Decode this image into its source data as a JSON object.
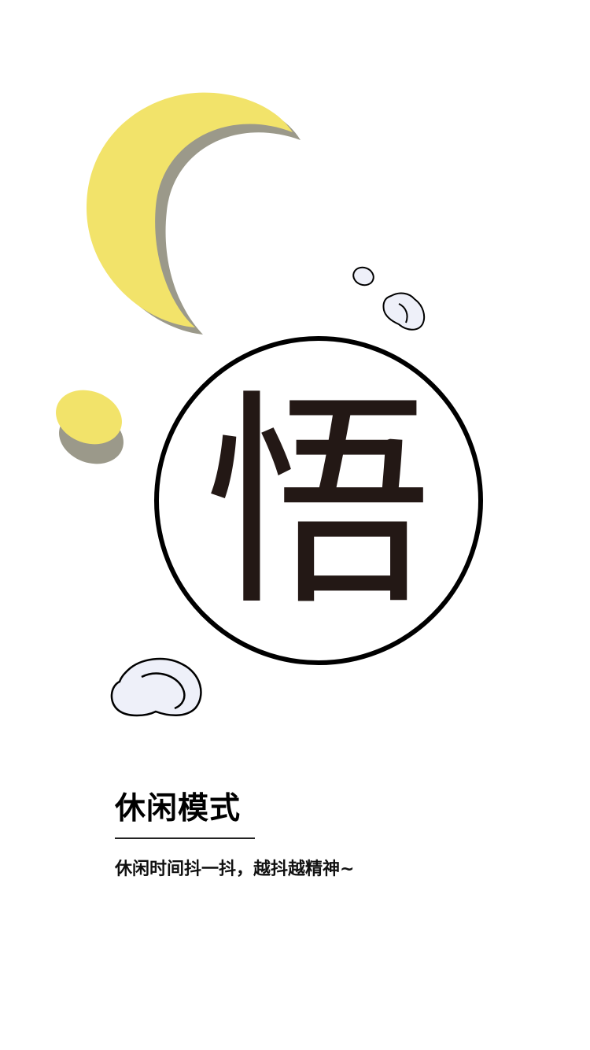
{
  "emblem": {
    "character": "悟"
  },
  "mode": {
    "title": "休闲模式",
    "description": "休闲时间抖一抖，越抖越精神~"
  },
  "colors": {
    "moon": "#f2e36a",
    "moon_shadow": "#9b998a",
    "cloud_fill": "#eef0f9",
    "outline": "#000000",
    "glyph": "#231815",
    "background": "#ffffff"
  }
}
